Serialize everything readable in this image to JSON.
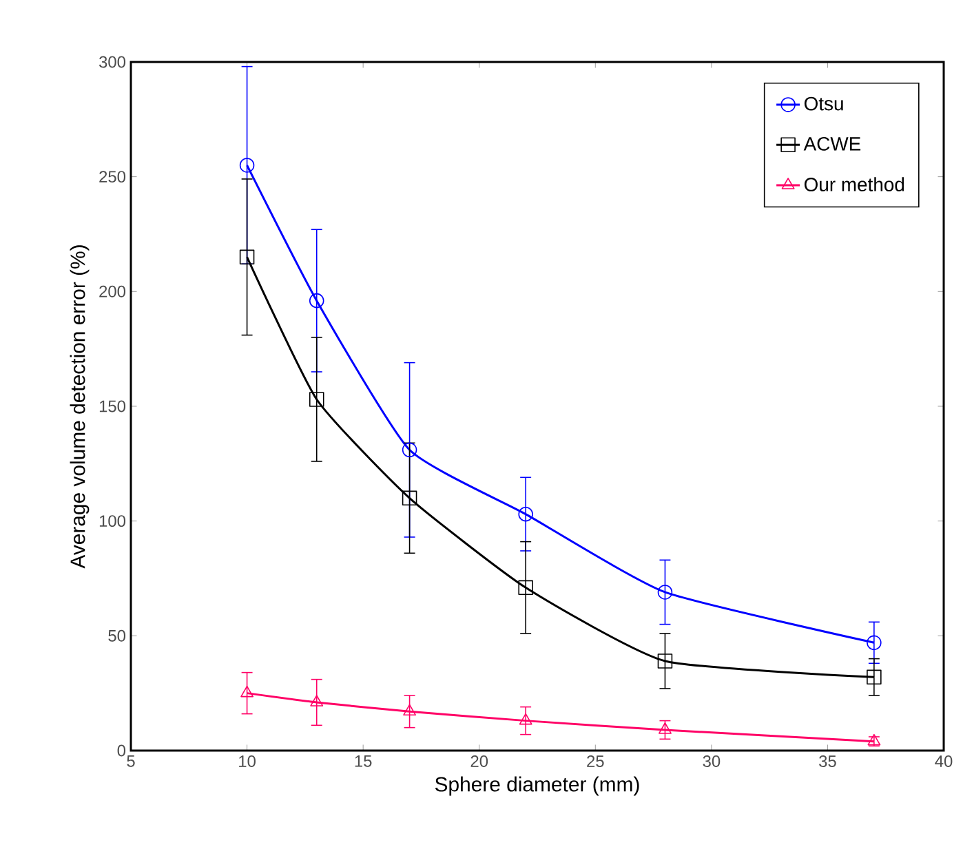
{
  "chart_data": {
    "type": "line",
    "xlabel": "Sphere diameter (mm)",
    "ylabel": "Average volume detection error (%)",
    "x": [
      10,
      13,
      17,
      22,
      28,
      37
    ],
    "series": [
      {
        "name": "Otsu",
        "color": "#0000ff",
        "marker": "circle",
        "values": [
          255,
          196,
          131,
          103,
          69,
          47
        ],
        "errors": [
          43,
          31,
          38,
          16,
          14,
          9
        ]
      },
      {
        "name": "ACWE",
        "color": "#000000",
        "marker": "square",
        "values": [
          215,
          153,
          110,
          71,
          39,
          32
        ],
        "errors": [
          34,
          27,
          24,
          20,
          12,
          8
        ]
      },
      {
        "name": "Our method",
        "color": "#ff0066",
        "marker": "triangle",
        "values": [
          25,
          21,
          17,
          13,
          9,
          4
        ],
        "errors": [
          9,
          10,
          7,
          6,
          4,
          2
        ]
      }
    ],
    "xlim": [
      5,
      40
    ],
    "xticks": [
      5,
      10,
      15,
      20,
      25,
      30,
      35,
      40
    ],
    "ylim": [
      0,
      300
    ],
    "yticks": [
      0,
      50,
      100,
      150,
      200,
      250,
      300
    ],
    "grid": false,
    "legend": "top right"
  }
}
